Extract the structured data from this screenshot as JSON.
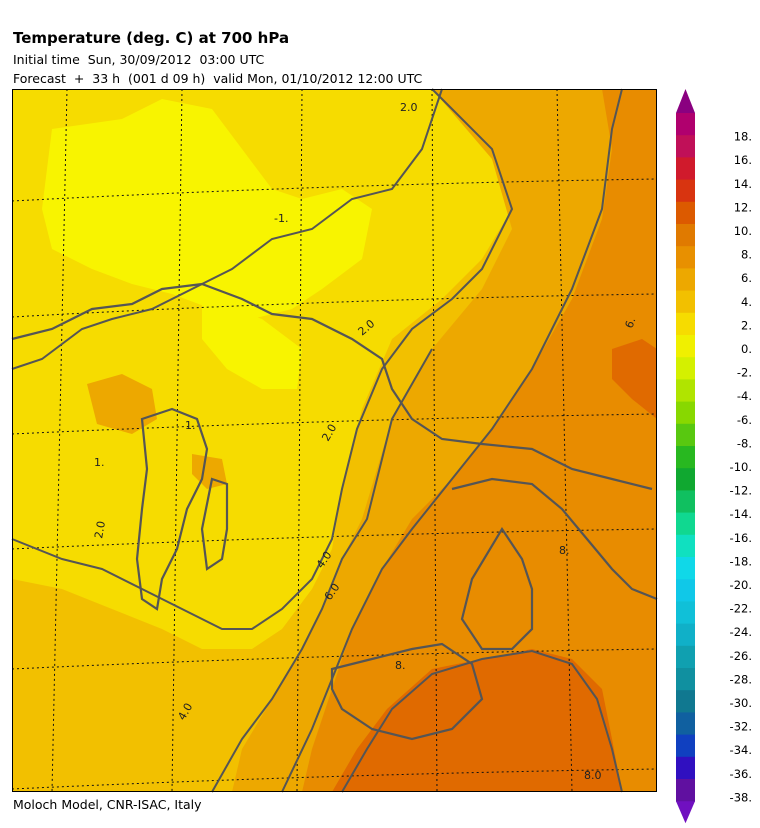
{
  "header": {
    "title": "Temperature (deg. C) at 700 hPa",
    "initial_time": "Initial time  Sun, 30/09/2012  03:00 UTC",
    "forecast": "Forecast  +  33 h  (001 d 09 h)  valid Mon, 01/10/2012 12:00 UTC"
  },
  "footer": {
    "credit": "Moloch Model, CNR-ISAC, Italy"
  },
  "map": {
    "contour_labels": [
      "2.0",
      "-1.",
      "1.",
      "2.0",
      "1.",
      "2.0",
      "2.0",
      "4.0",
      "6.0",
      "4.0",
      "8.",
      "8.",
      "8.0",
      "6."
    ]
  },
  "colorbar": {
    "labels": [
      "18.",
      "16.",
      "14.",
      "12.",
      "10.",
      "8.",
      "6.",
      "4.",
      "2.",
      "0.",
      "-2.",
      "-4.",
      "-6.",
      "-8.",
      "-10.",
      "-12.",
      "-14.",
      "-16.",
      "-18.",
      "-20.",
      "-22.",
      "-24.",
      "-26.",
      "-28.",
      "-30.",
      "-32.",
      "-34.",
      "-36.",
      "-38."
    ],
    "colors": [
      "#b0006e",
      "#c01058",
      "#d01a2c",
      "#d83410",
      "#dc5a00",
      "#e07a00",
      "#e89000",
      "#eda800",
      "#f2c000",
      "#f6dc00",
      "#f0f000",
      "#d4f000",
      "#b0e400",
      "#88d800",
      "#58c810",
      "#28b820",
      "#10a830",
      "#10c060",
      "#10d890",
      "#10e0c0",
      "#10d8e8",
      "#10c8e8",
      "#10c0d8",
      "#10b0c8",
      "#10a0b0",
      "#1090a0",
      "#107890",
      "#1060a0",
      "#1040c0",
      "#3010c0",
      "#6010a0"
    ],
    "top_arrow_color": "#8a0080",
    "bottom_arrow_color": "#7010c0"
  }
}
